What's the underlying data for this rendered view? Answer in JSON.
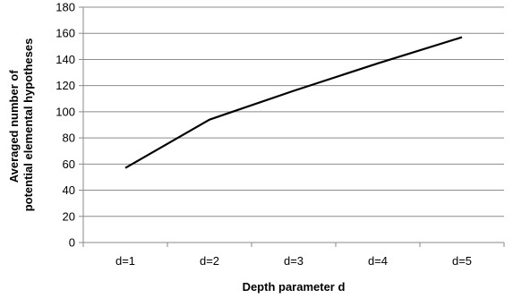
{
  "chart_data": {
    "type": "line",
    "title": "",
    "xlabel": "Depth parameter d",
    "ylabel_lines": [
      "Averaged number of",
      "potential elemental hypotheses"
    ],
    "categories": [
      "d=1",
      "d=2",
      "d=3",
      "d=4",
      "d=5"
    ],
    "series": [
      {
        "values": [
          57,
          94,
          116,
          137,
          157
        ],
        "color": "#000000"
      }
    ],
    "ylim": [
      0,
      180
    ],
    "yticks": [
      0,
      20,
      40,
      60,
      80,
      100,
      120,
      140,
      160,
      180
    ],
    "grid": true,
    "legend": "none"
  }
}
